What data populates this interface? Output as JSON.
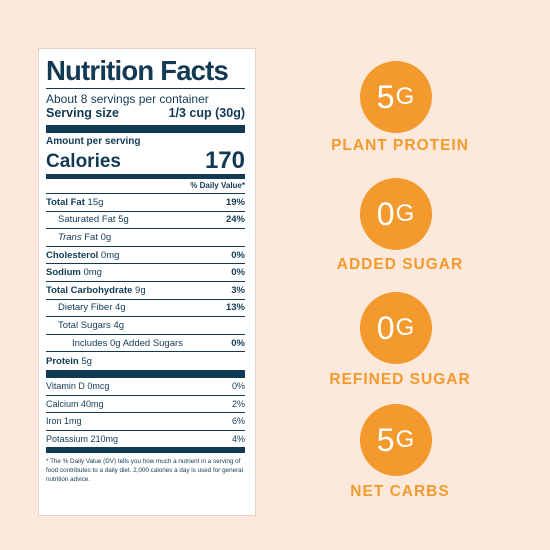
{
  "nutrition": {
    "title": "Nutrition Facts",
    "servings": "About 8 servings per container",
    "serving_size_label": "Serving size",
    "serving_size_value": "1/3 cup (30g)",
    "amount_per_serving": "Amount per serving",
    "calories_label": "Calories",
    "calories_value": "170",
    "daily_value_header": "% Daily Value*",
    "rows": [
      {
        "label": "Total Fat",
        "amount": "15g",
        "dv": "19%"
      },
      {
        "label": "Saturated Fat",
        "amount": "5g",
        "dv": "24%"
      },
      {
        "label": "Trans",
        "label_suffix": "Fat",
        "amount": "0g",
        "dv": ""
      },
      {
        "label": "Cholesterol",
        "amount": "0mg",
        "dv": "0%"
      },
      {
        "label": "Sodium",
        "amount": "0mg",
        "dv": "0%"
      },
      {
        "label": "Total Carbohydrate",
        "amount": "9g",
        "dv": "3%"
      },
      {
        "label": "Dietary Fiber",
        "amount": "4g",
        "dv": "13%"
      },
      {
        "label": "Total Sugars",
        "amount": "4g",
        "dv": ""
      },
      {
        "label": "Includes 0g Added Sugars",
        "amount": "",
        "dv": "0%"
      },
      {
        "label": "Protein",
        "amount": "5g",
        "dv": ""
      }
    ],
    "vitamins": [
      {
        "label": "Vitamin D 0mcg",
        "dv": "0%"
      },
      {
        "label": "Calcium 40mg",
        "dv": "2%"
      },
      {
        "label": "Iron 1mg",
        "dv": "6%"
      },
      {
        "label": "Potassium 210mg",
        "dv": "4%"
      }
    ],
    "footnote": "* The % Daily Value (DV) tells you how much a nutrient in a serving of food contributes to a daily diet. 2,000 calories a day is used for general nutrition advice."
  },
  "highlights": [
    {
      "number": "5",
      "unit": "G",
      "caption": "PLANT PROTEIN"
    },
    {
      "number": "0",
      "unit": "G",
      "caption": "ADDED SUGAR"
    },
    {
      "number": "0",
      "unit": "G",
      "caption": "REFINED SUGAR"
    },
    {
      "number": "5",
      "unit": "G",
      "caption": "NET CARBS"
    }
  ],
  "colors": {
    "background": "#fce9dc",
    "accent": "#f39a2e",
    "label_ink": "#123a54"
  }
}
